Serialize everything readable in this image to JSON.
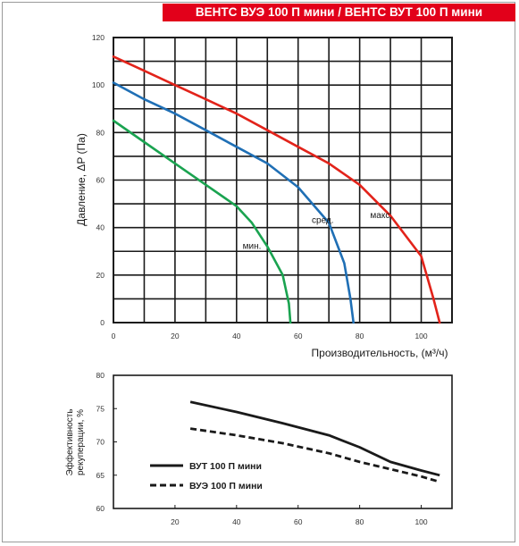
{
  "title": "ВЕНТС ВУЭ 100 П мини / ВЕНТС ВУТ 100 П мини",
  "chart_data": [
    {
      "type": "line",
      "xlabel": "Производительность, (м³/ч)",
      "ylabel": "Давление, ΔP (Па)",
      "xlim": [
        0,
        110
      ],
      "ylim": [
        0,
        120
      ],
      "xticks": [
        0,
        20,
        40,
        60,
        80,
        100
      ],
      "yticks": [
        0,
        20,
        40,
        60,
        80,
        100,
        120
      ],
      "grid": true,
      "series": [
        {
          "name": "макс.",
          "color": "#e2231a",
          "points": [
            [
              0,
              112
            ],
            [
              10,
              106
            ],
            [
              20,
              100
            ],
            [
              30,
              94
            ],
            [
              40,
              88
            ],
            [
              50,
              81
            ],
            [
              60,
              74
            ],
            [
              70,
              67
            ],
            [
              80,
              58
            ],
            [
              90,
              45
            ],
            [
              100,
              28
            ],
            [
              104,
              10
            ],
            [
              106,
              0
            ]
          ]
        },
        {
          "name": "сред.",
          "color": "#1f6fb5",
          "points": [
            [
              0,
              101
            ],
            [
              10,
              94
            ],
            [
              20,
              88
            ],
            [
              30,
              81
            ],
            [
              40,
              74
            ],
            [
              50,
              67
            ],
            [
              60,
              57
            ],
            [
              70,
              42
            ],
            [
              75,
              25
            ],
            [
              77,
              10
            ],
            [
              78,
              0
            ]
          ]
        },
        {
          "name": "мин.",
          "color": "#1aa350",
          "points": [
            [
              0,
              85
            ],
            [
              10,
              76
            ],
            [
              20,
              67
            ],
            [
              30,
              58
            ],
            [
              40,
              49
            ],
            [
              45,
              42
            ],
            [
              50,
              32
            ],
            [
              55,
              20
            ],
            [
              57,
              8
            ],
            [
              57.5,
              0
            ]
          ]
        }
      ]
    },
    {
      "type": "line",
      "xlabel": "",
      "ylabel": "Эффективность рекуперации, %",
      "ylabel_lines": [
        "Эффективность",
        "рекуперации, %"
      ],
      "xlim": [
        0,
        110
      ],
      "ylim": [
        60,
        80
      ],
      "xticks": [
        20,
        40,
        60,
        80,
        100
      ],
      "yticks": [
        60,
        65,
        70,
        75,
        80
      ],
      "grid": false,
      "series": [
        {
          "name": "ВУТ 100 П мини",
          "style": "solid",
          "color": "#1a1a1a",
          "points": [
            [
              25,
              76
            ],
            [
              40,
              74.5
            ],
            [
              55,
              72.8
            ],
            [
              70,
              71
            ],
            [
              80,
              69.2
            ],
            [
              90,
              67
            ],
            [
              100,
              65.7
            ],
            [
              106,
              65
            ]
          ]
        },
        {
          "name": "ВУЭ 100 П мини",
          "style": "dashed",
          "color": "#1a1a1a",
          "points": [
            [
              25,
              72
            ],
            [
              40,
              71
            ],
            [
              55,
              69.8
            ],
            [
              70,
              68.3
            ],
            [
              80,
              67
            ],
            [
              90,
              65.9
            ],
            [
              100,
              64.8
            ],
            [
              106,
              64
            ]
          ]
        }
      ]
    }
  ]
}
